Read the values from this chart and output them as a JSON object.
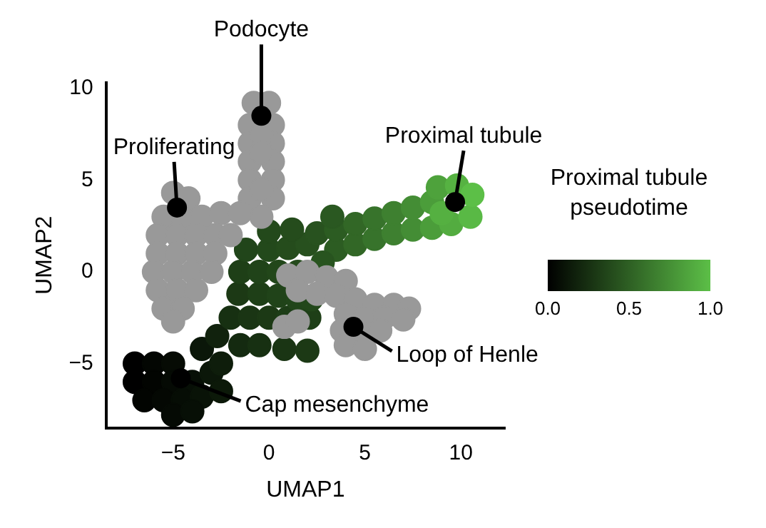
{
  "chart_data": {
    "type": "scatter",
    "xlabel": "UMAP1",
    "ylabel": "UMAP2",
    "clabel": "Proximal tubule pseudotime",
    "xlim": [
      -8.5,
      12.3
    ],
    "ylim": [
      -8.5,
      10.3
    ],
    "xticks": [
      -5,
      0,
      5,
      10
    ],
    "yticks": [
      -5,
      0,
      5,
      10
    ],
    "clim": [
      0,
      1
    ],
    "cticks": [
      {
        "value": 0,
        "label": "0.0"
      },
      {
        "value": 0.5,
        "label": "0.5"
      },
      {
        "value": 1,
        "label": "1.0"
      }
    ],
    "grid": false,
    "legend": false,
    "marker": "circle",
    "series": [
      {
        "color": "#999999",
        "x": [
          -0.8,
          0,
          -1,
          0.2,
          -1,
          0.2,
          -1,
          0.2,
          -1,
          0.2,
          -1,
          0.2,
          -0.4,
          -0.4,
          -0.4,
          -0.4,
          -5,
          -4.2,
          -5.5,
          -4.5,
          -3.5,
          -2.5,
          -1.5,
          -5.8,
          -4.8,
          -3.8,
          -2.8,
          -2,
          -5.8,
          -4.8,
          -3.8,
          -2.8,
          -6,
          -5,
          -4,
          -3,
          -5.8,
          -4.8,
          -3.8,
          -5.5,
          -4.5,
          -5,
          1,
          2,
          3,
          4,
          1.5,
          2.5,
          3.5,
          4.5,
          5.5,
          6.5,
          7.3,
          4,
          5,
          6,
          7,
          3.8,
          4.8,
          5.8,
          4,
          5,
          0.8,
          1.5
        ],
        "values": [
          9.2,
          9.2,
          8,
          8,
          7,
          7,
          6,
          6,
          5,
          5,
          4,
          4,
          7.5,
          6.5,
          4.5,
          3,
          4.3,
          4,
          3,
          3,
          3,
          3.2,
          3.2,
          2,
          2,
          2,
          2,
          2,
          1,
          1,
          1,
          1,
          0,
          0,
          0,
          0,
          -1,
          -1,
          -1,
          -2,
          -2,
          -2.7,
          -0.2,
          0,
          -0.3,
          -0.5,
          -1,
          -1.2,
          -1.3,
          -1.5,
          -1.8,
          -1.8,
          -2,
          -2.3,
          -2.5,
          -2.5,
          -2.6,
          -3.2,
          -3.4,
          -3.2,
          -4,
          -4.2,
          -3,
          -2.7
        ]
      },
      {
        "x": [
          -7,
          -6,
          -5,
          -3.5,
          -7,
          -6,
          -5,
          -4,
          -3,
          -6.5,
          -5.5,
          -4.5,
          -3.5,
          -5,
          -4,
          -2.5,
          -2.5,
          -2.7,
          -1.5,
          -0.5,
          0.8,
          2,
          -2,
          -1,
          0,
          1,
          2.1,
          -1.6,
          -0.5,
          0.5,
          1.5,
          2.2,
          -1.5,
          -0.5,
          0.5,
          1.5,
          -1.2,
          0,
          1,
          2,
          0,
          1.2,
          2.5,
          3.5,
          3.5,
          4.5,
          4.5,
          5.5,
          5.5,
          6.5,
          6.5,
          7.5,
          7.5,
          8.5,
          8.5,
          8.8,
          9.5,
          9.0,
          9.8,
          10.5,
          10.6,
          2.8,
          3.3
        ],
        "values": [
          -5,
          -5,
          -5,
          -4.2,
          -6,
          -6,
          -6,
          -6,
          -5.5,
          -7,
          -7,
          -7,
          -6.8,
          -7.8,
          -7.6,
          -6.5,
          -5,
          -3.5,
          -4,
          -4,
          -4.2,
          -4.3,
          -2.5,
          -2.5,
          -2.5,
          -2.5,
          -2.5,
          -1.2,
          -1.2,
          -1.3,
          -1.5,
          -1.5,
          0,
          0,
          0,
          0,
          1.2,
          1.2,
          1.3,
          1.5,
          2.2,
          2.3,
          2.1,
          1.2,
          2.3,
          1.5,
          2.6,
          1.8,
          2.9,
          2.1,
          3.2,
          2.3,
          3.5,
          2.4,
          3.8,
          4.6,
          2.6,
          3.2,
          4.7,
          3,
          4.2,
          0.5,
          3
        ],
        "cvalues": [
          0,
          0.03,
          0.06,
          0.12,
          0,
          0.02,
          0.05,
          0.08,
          0.12,
          0.02,
          0.04,
          0.07,
          0.1,
          0.05,
          0.08,
          0.13,
          0.15,
          0.18,
          0.22,
          0.25,
          0.28,
          0.3,
          0.25,
          0.28,
          0.3,
          0.32,
          0.33,
          0.3,
          0.33,
          0.35,
          0.36,
          0.37,
          0.33,
          0.35,
          0.37,
          0.39,
          0.36,
          0.38,
          0.4,
          0.42,
          0.38,
          0.4,
          0.43,
          0.48,
          0.48,
          0.54,
          0.54,
          0.6,
          0.6,
          0.67,
          0.67,
          0.74,
          0.74,
          0.82,
          0.82,
          0.85,
          0.9,
          0.92,
          0.93,
          0.97,
          1,
          0.44,
          0.46
        ],
        "colors": [
          "#000000",
          "#030602",
          "#060b04",
          "#0b1709",
          "#000000",
          "#020401",
          "#050a04",
          "#070f06",
          "#0b1709",
          "#020401",
          "#040803",
          "#060d05",
          "#091307",
          "#050a04",
          "#070f06",
          "#0c1909",
          "#0e1d0b",
          "#11220d",
          "#142a10",
          "#173012",
          "#1a3514",
          "#1c3915",
          "#173012",
          "#1a3514",
          "#1c3915",
          "#1d3d17",
          "#1e3f17",
          "#1c3915",
          "#1e3f17",
          "#204319",
          "#21451a",
          "#22471a",
          "#1e3f17",
          "#204319",
          "#22471a",
          "#244a1c",
          "#21451a",
          "#23491b",
          "#254c1c",
          "#27501e",
          "#23491b",
          "#254c1c",
          "#28521f",
          "#2c5c22",
          "#2c5c22",
          "#326726",
          "#326726",
          "#37732b",
          "#37732b",
          "#3e8030",
          "#3e8030",
          "#448d35",
          "#448d35",
          "#4b9d3a",
          "#4b9d3a",
          "#4ea23c",
          "#53ac40",
          "#55b041",
          "#56b242",
          "#59b945",
          "#5cbf47",
          "#28541f",
          "#2a5821"
        ]
      }
    ],
    "annotations": [
      {
        "text": "Podocyte",
        "x": -0.4,
        "y": 8.5
      },
      {
        "text": "Proliferating",
        "x": -4.8,
        "y": 3.5
      },
      {
        "text": "Proximal tubule",
        "x": 9.7,
        "y": 3.8
      },
      {
        "text": "Loop of Henle",
        "x": 4.4,
        "y": -3
      },
      {
        "text": "Cap mesenchyme",
        "x": -4.6,
        "y": -5.8
      }
    ]
  }
}
